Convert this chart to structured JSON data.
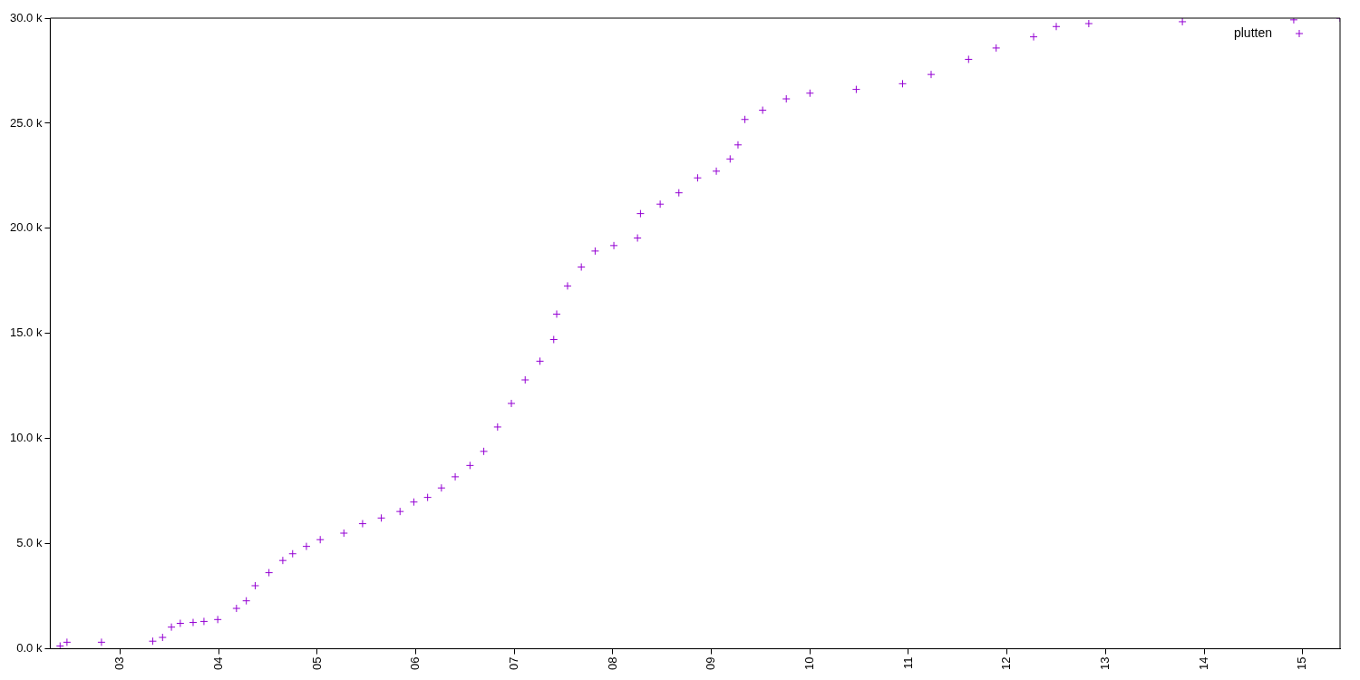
{
  "chart_data": {
    "type": "scatter",
    "marker": "cross",
    "legend": "top right",
    "grid": false,
    "xlim": [
      2.29,
      15.38
    ],
    "xticks": [
      {
        "value": 3,
        "label": "03"
      },
      {
        "value": 4,
        "label": "04"
      },
      {
        "value": 5,
        "label": "05"
      },
      {
        "value": 6,
        "label": "06"
      },
      {
        "value": 7,
        "label": "07"
      },
      {
        "value": 8,
        "label": "08"
      },
      {
        "value": 9,
        "label": "09"
      },
      {
        "value": 10,
        "label": "10"
      },
      {
        "value": 11,
        "label": "11"
      },
      {
        "value": 12,
        "label": "12"
      },
      {
        "value": 13,
        "label": "13"
      },
      {
        "value": 14,
        "label": "14"
      },
      {
        "value": 15,
        "label": "15"
      }
    ],
    "ylim": [
      0,
      30000
    ],
    "yticks": [
      {
        "value": 0,
        "label": "0.0 k"
      },
      {
        "value": 5000,
        "label": "5.0 k"
      },
      {
        "value": 10000,
        "label": "10.0 k"
      },
      {
        "value": 15000,
        "label": "15.0 k"
      },
      {
        "value": 20000,
        "label": "20.0 k"
      },
      {
        "value": 25000,
        "label": "25.0 k"
      },
      {
        "value": 30000,
        "label": "30.0 k"
      }
    ],
    "series": [
      {
        "name": "plutten",
        "color": "#9400d3",
        "x": [
          2.29,
          2.39,
          2.46,
          2.81,
          3.33,
          3.43,
          3.52,
          3.61,
          3.74,
          3.85,
          3.99,
          4.18,
          4.28,
          4.37,
          4.51,
          4.65,
          4.75,
          4.89,
          5.03,
          5.27,
          5.46,
          5.65,
          5.84,
          5.98,
          6.12,
          6.26,
          6.4,
          6.55,
          6.69,
          6.83,
          6.97,
          7.11,
          7.26,
          7.4,
          7.43,
          7.54,
          7.68,
          7.82,
          8.01,
          8.25,
          8.28,
          8.48,
          8.67,
          8.86,
          9.05,
          9.19,
          9.27,
          9.34,
          9.52,
          9.76,
          10.0,
          10.47,
          10.94,
          11.23,
          11.61,
          11.89,
          12.27,
          12.5,
          12.83,
          13.78,
          14.91,
          15.38
        ],
        "values": [
          0,
          130,
          310,
          310,
          360,
          540,
          1030,
          1210,
          1250,
          1300,
          1390,
          1920,
          2280,
          3000,
          3620,
          4200,
          4520,
          4870,
          5190,
          5500,
          5950,
          6220,
          6530,
          6980,
          7200,
          7650,
          8180,
          8720,
          9390,
          10550,
          11670,
          12790,
          13680,
          14710,
          15920,
          17260,
          18160,
          18920,
          19180,
          19540,
          20700,
          21150,
          21690,
          22400,
          22720,
          23300,
          23970,
          25180,
          25620,
          26160,
          26430,
          26610,
          26880,
          27320,
          28040,
          28580,
          29110,
          29600,
          29740,
          29830,
          29920,
          30000
        ]
      }
    ]
  }
}
